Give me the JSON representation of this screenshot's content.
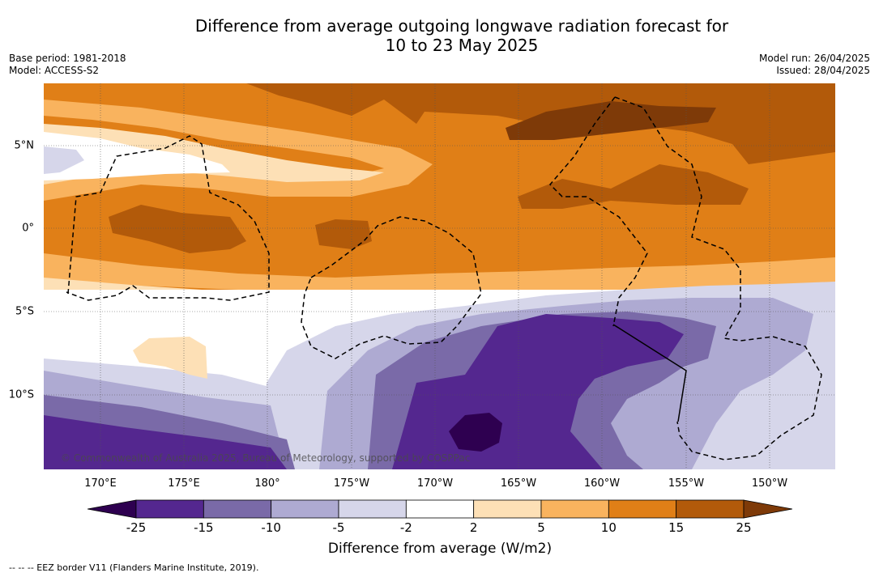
{
  "title": {
    "line1": "Difference from average outgoing longwave radiation forecast for",
    "line2": "10 to 23 May 2025"
  },
  "meta_left": {
    "base_period": "Base period: 1981-2018",
    "model": "Model: ACCESS-S2"
  },
  "meta_right": {
    "model_run": "Model run: 26/04/2025",
    "issued": "Issued: 28/04/2025"
  },
  "map": {
    "copyright": "© Commonwealth of Australia 2025, Bureau of Meteorology, supported by COSPPac",
    "lat_labels": [
      "5°N",
      "0°",
      "5°S",
      "10°S"
    ],
    "lon_labels": [
      "170°E",
      "175°E",
      "180°",
      "175°W",
      "170°W",
      "165°W",
      "160°W",
      "155°W",
      "150°W"
    ]
  },
  "colorbar": {
    "title": "Difference from average (W/m2)",
    "ticks": [
      "-25",
      "-15",
      "-10",
      "-5",
      "-2",
      "2",
      "5",
      "10",
      "15",
      "25"
    ],
    "colors": [
      "#2e0050",
      "#54278f",
      "#7a6aa8",
      "#aeaad2",
      "#d6d6ea",
      "#ffffff",
      "#fde0b6",
      "#f9b35e",
      "#e07f17",
      "#b25a0a",
      "#7e3a08"
    ]
  },
  "footer": {
    "eez_note": "--  --  -- EEZ border V11 (Flanders Marine Institute, 2019)."
  }
}
